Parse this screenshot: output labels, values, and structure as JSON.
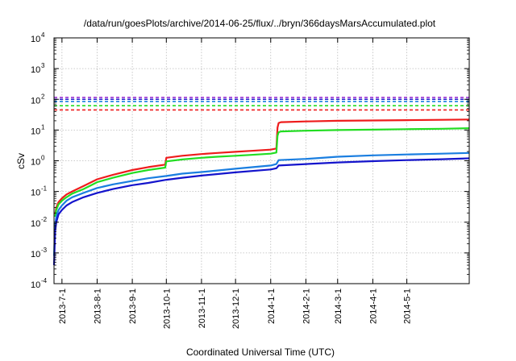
{
  "chart_data": {
    "type": "line",
    "title": "/data/run/goesPlots/archive/2014-06-25/flux/../bryn/366daysMarsAccumulated.plot",
    "xlabel": "Coordinated Universal Time (UTC)",
    "ylabel": "cSv",
    "y_scale": "log",
    "ylim": [
      0.0001,
      10000
    ],
    "xlim": [
      "2013-06-24",
      "2014-06-25"
    ],
    "grid": true,
    "legend": "none",
    "x_ticks": [
      "2013-7-1",
      "2013-8-1",
      "2013-9-1",
      "2013-10-1",
      "2013-11-1",
      "2013-12-1",
      "2014-1-1",
      "2014-2-1",
      "2014-3-1",
      "2014-4-1",
      "2014-5-1"
    ],
    "x_tick_dates": [
      "2013-07-01",
      "2013-08-01",
      "2013-09-01",
      "2013-10-01",
      "2013-11-01",
      "2013-12-01",
      "2014-01-01",
      "2014-02-01",
      "2014-03-01",
      "2014-04-01",
      "2014-05-01"
    ],
    "y_ticks": [
      {
        "base": "10",
        "exp": "-4",
        "value": 0.0001
      },
      {
        "base": "10",
        "exp": "-3",
        "value": 0.001
      },
      {
        "base": "10",
        "exp": "-2",
        "value": 0.01
      },
      {
        "base": "10",
        "exp": "-1",
        "value": 0.1
      },
      {
        "base": "10",
        "exp": "0",
        "value": 1
      },
      {
        "base": "10",
        "exp": "1",
        "value": 10
      },
      {
        "base": "10",
        "exp": "2",
        "value": 100
      },
      {
        "base": "10",
        "exp": "3",
        "value": 1000
      },
      {
        "base": "10",
        "exp": "4",
        "value": 10000
      }
    ],
    "reference_lines": [
      {
        "color": "#9a2fd0",
        "value": 115
      },
      {
        "color": "#1f1fd0",
        "value": 100
      },
      {
        "color": "#1a7ee0",
        "value": 85
      },
      {
        "color": "#22dd22",
        "value": 62
      },
      {
        "color": "#ee1c1c",
        "value": 45
      }
    ],
    "series": [
      {
        "color": "#ee1c1c",
        "x": [
          "2013-06-25",
          "2013-06-26",
          "2013-06-28",
          "2013-07-01",
          "2013-07-05",
          "2013-07-10",
          "2013-07-20",
          "2013-08-01",
          "2013-08-15",
          "2013-09-01",
          "2013-09-15",
          "2013-09-30",
          "2013-10-01",
          "2013-10-15",
          "2013-11-01",
          "2013-11-15",
          "2013-12-01",
          "2013-12-15",
          "2014-01-01",
          "2014-01-06",
          "2014-01-07",
          "2014-01-08",
          "2014-01-10",
          "2014-02-01",
          "2014-03-01",
          "2014-04-01",
          "2014-05-01",
          "2014-06-01",
          "2014-06-25"
        ],
        "y": [
          0.018,
          0.03,
          0.045,
          0.06,
          0.08,
          0.1,
          0.15,
          0.25,
          0.35,
          0.5,
          0.62,
          0.75,
          1.25,
          1.45,
          1.65,
          1.8,
          1.95,
          2.1,
          2.3,
          2.5,
          12,
          17,
          18,
          19,
          20,
          20.5,
          21,
          21.5,
          22
        ]
      },
      {
        "color": "#22dd22",
        "x": [
          "2013-06-25",
          "2013-06-26",
          "2013-06-28",
          "2013-07-01",
          "2013-07-05",
          "2013-07-10",
          "2013-07-20",
          "2013-08-01",
          "2013-08-15",
          "2013-09-01",
          "2013-09-15",
          "2013-09-30",
          "2013-10-01",
          "2013-10-15",
          "2013-11-01",
          "2013-11-15",
          "2013-12-01",
          "2013-12-15",
          "2014-01-01",
          "2014-01-06",
          "2014-01-07",
          "2014-01-08",
          "2014-01-10",
          "2014-02-01",
          "2014-03-01",
          "2014-04-01",
          "2014-05-01",
          "2014-06-01",
          "2014-06-25"
        ],
        "y": [
          0.015,
          0.025,
          0.038,
          0.05,
          0.065,
          0.085,
          0.12,
          0.2,
          0.28,
          0.4,
          0.5,
          0.6,
          0.95,
          1.1,
          1.25,
          1.35,
          1.45,
          1.55,
          1.7,
          1.85,
          6.5,
          8.5,
          9,
          9.5,
          10,
          10.3,
          10.7,
          11,
          11.5
        ]
      },
      {
        "color": "#1a7ee0",
        "x": [
          "2013-06-24",
          "2013-06-25",
          "2013-06-26",
          "2013-06-28",
          "2013-07-01",
          "2013-07-05",
          "2013-07-10",
          "2013-07-20",
          "2013-08-01",
          "2013-08-15",
          "2013-09-01",
          "2013-09-15",
          "2013-10-01",
          "2013-10-15",
          "2013-11-01",
          "2013-12-01",
          "2014-01-01",
          "2014-01-06",
          "2014-01-08",
          "2014-02-01",
          "2014-03-01",
          "2014-04-01",
          "2014-05-01",
          "2014-06-01",
          "2014-06-25"
        ],
        "y": [
          0.0008,
          0.008,
          0.015,
          0.025,
          0.035,
          0.05,
          0.065,
          0.09,
          0.13,
          0.17,
          0.22,
          0.27,
          0.32,
          0.38,
          0.43,
          0.55,
          0.7,
          0.78,
          1.05,
          1.15,
          1.35,
          1.5,
          1.6,
          1.7,
          1.8
        ]
      },
      {
        "color": "#1414cc",
        "x": [
          "2013-06-24",
          "2013-06-25",
          "2013-06-26",
          "2013-06-28",
          "2013-07-01",
          "2013-07-05",
          "2013-07-10",
          "2013-07-20",
          "2013-08-01",
          "2013-08-15",
          "2013-09-01",
          "2013-09-15",
          "2013-10-01",
          "2013-10-15",
          "2013-11-01",
          "2013-12-01",
          "2014-01-01",
          "2014-01-06",
          "2014-01-08",
          "2014-02-01",
          "2014-03-01",
          "2014-04-01",
          "2014-05-01",
          "2014-06-01",
          "2014-06-25"
        ],
        "y": [
          0.0004,
          0.005,
          0.01,
          0.018,
          0.025,
          0.035,
          0.045,
          0.065,
          0.09,
          0.12,
          0.16,
          0.19,
          0.24,
          0.28,
          0.33,
          0.42,
          0.52,
          0.57,
          0.7,
          0.78,
          0.88,
          0.97,
          1.05,
          1.12,
          1.2
        ]
      }
    ]
  }
}
